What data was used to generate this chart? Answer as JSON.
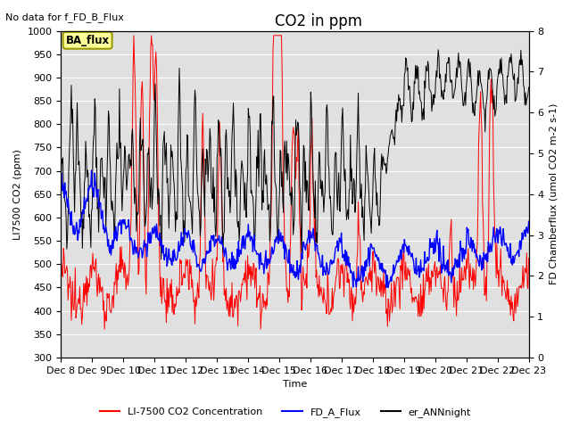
{
  "title": "CO2 in ppm",
  "top_left_text": "No data for f_FD_B_Flux",
  "xlabel": "Time",
  "ylabel_left": "LI7500 CO2 (ppm)",
  "ylabel_right": "FD Chamberflux (umol CO2 m-2 s-1)",
  "ylim_left": [
    300,
    1000
  ],
  "ylim_right": [
    0.0,
    8.0
  ],
  "x_tick_days": [
    8,
    9,
    10,
    11,
    12,
    13,
    14,
    15,
    16,
    17,
    18,
    19,
    20,
    21,
    22,
    23
  ],
  "x_tick_labels": [
    "Dec 8",
    "Dec 9",
    "Dec 10",
    "Dec 11",
    "Dec 12",
    "Dec 13",
    "Dec 14",
    "Dec 15",
    "Dec 16",
    "Dec 17",
    "Dec 18",
    "Dec 19",
    "Dec 20",
    "Dec 21",
    "Dec 22",
    "Dec 23"
  ],
  "legend_box_text": "BA_flux",
  "legend_box_facecolor": "#FFFF99",
  "legend_box_edgecolor": "#999900",
  "red_label": "LI-7500 CO2 Concentration",
  "blue_label": "FD_A_Flux",
  "black_label": "er_ANNnight",
  "red_color": "#FF0000",
  "blue_color": "#0000FF",
  "black_color": "#000000",
  "bg_color": "#E0E0E0",
  "fig_bg": "#FFFFFF",
  "grid_color": "#FFFFFF",
  "title_fontsize": 12,
  "label_fontsize": 8,
  "tick_fontsize": 8
}
